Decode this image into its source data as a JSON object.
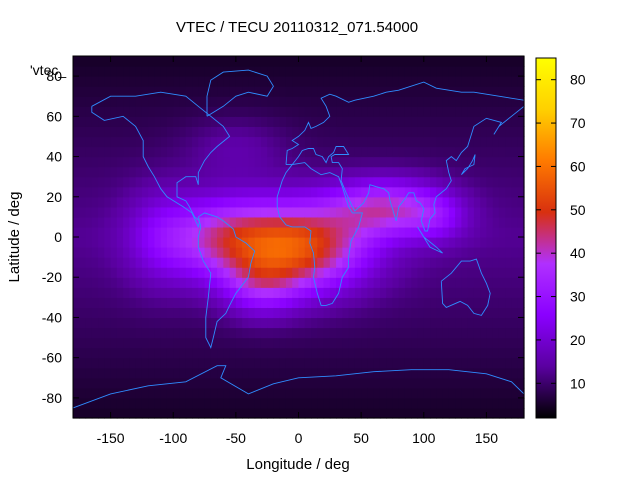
{
  "chart_data": {
    "type": "heatmap",
    "title": "VTEC / TECU 20110312_071.54000",
    "xlabel": "Longitude / deg",
    "ylabel": "Latitude / deg",
    "xlim": [
      -180,
      180
    ],
    "ylim": [
      -90,
      90
    ],
    "x_ticks": [
      -150,
      -100,
      -50,
      0,
      50,
      100,
      150
    ],
    "y_ticks": [
      -80,
      -60,
      -40,
      -20,
      0,
      20,
      40,
      60,
      80
    ],
    "legend_key": "'vtec_",
    "colorbar": {
      "range": [
        2,
        85
      ],
      "ticks": [
        10,
        20,
        30,
        40,
        50,
        60,
        70,
        80
      ],
      "palette": [
        "#000000",
        "#5a00a0",
        "#8a00ff",
        "#b030ff",
        "#d8300f",
        "#ff7a00",
        "#ffd000",
        "#ffff00"
      ]
    },
    "colorbar_tick_labels": [
      "10",
      "20",
      "30",
      "40",
      "50",
      "60",
      "70",
      "80"
    ],
    "x_tick_labels": [
      "-150",
      "-100",
      "-50",
      "0",
      "50",
      "100",
      "150"
    ],
    "y_tick_labels": [
      "-80",
      "-60",
      "-40",
      "-20",
      "0",
      "20",
      "40",
      "60",
      "80"
    ],
    "features": [
      {
        "lon": 0,
        "lat": -5,
        "sx": 55,
        "sy": 22,
        "amp": 40
      },
      {
        "lon": -60,
        "lat": 0,
        "sx": 45,
        "sy": 20,
        "amp": 22
      },
      {
        "lon": 70,
        "lat": 15,
        "sx": 45,
        "sy": 14,
        "amp": 26
      },
      {
        "lon": 110,
        "lat": 10,
        "sx": 25,
        "sy": 12,
        "amp": 10
      },
      {
        "lon": -30,
        "lat": -25,
        "sx": 30,
        "sy": 15,
        "amp": 14
      },
      {
        "lon": -110,
        "lat": 0,
        "sx": 30,
        "sy": 25,
        "amp": 10
      },
      {
        "lon": -50,
        "lat": 45,
        "sx": 40,
        "sy": 15,
        "amp": 6
      }
    ],
    "background_level": 13,
    "coastlines": "world-continents"
  }
}
